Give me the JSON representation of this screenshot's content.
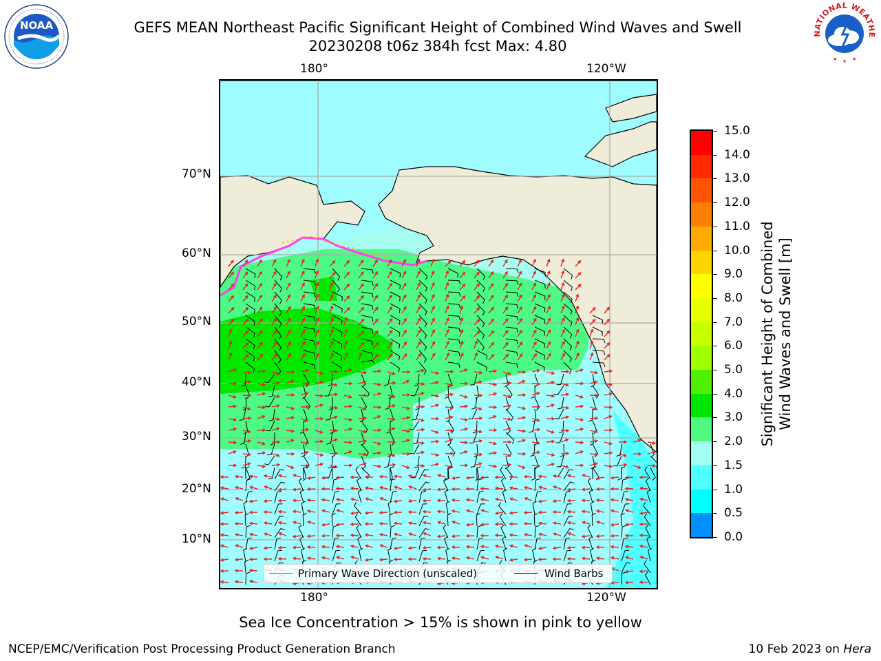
{
  "title": {
    "line1": "GEFS MEAN Northeast Pacific Significant Height of Combined Wind Waves and Swell",
    "line2": "20230208 t06z 384h fcst   Max: 4.80"
  },
  "logos": {
    "left": {
      "name": "noaa-logo",
      "text": "NOAA"
    },
    "right": {
      "name": "nws-logo",
      "text": "NATIONAL WEATHER SERVICE"
    }
  },
  "map": {
    "top_lon_labels": [
      "180°",
      "120°W"
    ],
    "bottom_lon_labels": [
      "180°",
      "120°W"
    ],
    "lat_labels": [
      "70°N",
      "60°N",
      "50°N",
      "40°N",
      "30°N",
      "20°N",
      "10°N"
    ],
    "colors": {
      "land": "#efedda",
      "ocean_calm": "#9ffcff",
      "band_2_3": "#a7fdf0",
      "band_3_4": "#4dfa85",
      "band_4_5": "#00e800",
      "wave_arrow": "#e8231c",
      "wind_barb": "#000000",
      "ice": [
        "#ff3df0",
        "#ffb000",
        "#ffe000"
      ]
    }
  },
  "legend": {
    "primary_wave_label": "Primary Wave Direction (unscaled)",
    "wind_barbs_label": "Wind Barbs",
    "primary_wave_color": "#e8231c",
    "wind_barbs_color": "#000000"
  },
  "colorbar": {
    "label_line1": "Significant Height of Combined",
    "label_line2": "Wind Waves and Swell [m]",
    "tick_labels": [
      "15.0",
      "14.0",
      "13.0",
      "12.0",
      "11.0",
      "10.0",
      "9.0",
      "8.0",
      "7.0",
      "6.0",
      "5.0",
      "4.0",
      "3.0",
      "2.0",
      "1.5",
      "1.0",
      "0.5",
      "0.0"
    ],
    "colors": [
      "#ff0000",
      "#ff2a00",
      "#ff5500",
      "#ff8000",
      "#ffaa00",
      "#ffd400",
      "#ffff00",
      "#e8ff00",
      "#c8ff00",
      "#a0ff00",
      "#50ee00",
      "#00e600",
      "#50fa80",
      "#a0ffee",
      "#50ffff",
      "#00ffff",
      "#0090ff",
      "#0050ff",
      "#0000ff"
    ]
  },
  "footer": {
    "note": "Sea Ice Concentration > 15% is shown in pink to yellow",
    "left": "NCEP/EMC/Verification Post Processing Product Generation Branch",
    "right_date": "10 Feb 2023 on ",
    "right_machine": "Hera"
  }
}
